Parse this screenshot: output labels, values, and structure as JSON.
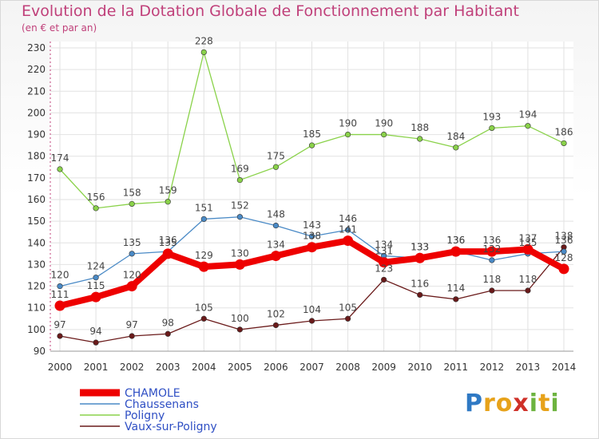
{
  "header": {
    "title": "Evolution de la Dotation Globale de Fonctionnement par Habitant",
    "subtitle": "(en € et par an)"
  },
  "logo": {
    "text": "Proxiti"
  },
  "colors": {
    "title": "#c0407a",
    "CHAMOLE": "#ee0000",
    "Chaussenans": "#4a8ac6",
    "Poligny": "#8ad24a",
    "Vaux-sur-Poligny": "#6a1a1a"
  },
  "chart_data": {
    "type": "line",
    "title": "Evolution de la Dotation Globale de Fonctionnement par Habitant",
    "subtitle": "(en € et par an)",
    "x": [
      "2000",
      "2001",
      "2002",
      "2003",
      "2004",
      "2005",
      "2006",
      "2007",
      "2008",
      "2009",
      "2010",
      "2011",
      "2012",
      "2013",
      "2014"
    ],
    "ylim": [
      90,
      230
    ],
    "yticks": [
      90,
      100,
      110,
      120,
      130,
      140,
      150,
      160,
      170,
      180,
      190,
      200,
      210,
      220,
      230
    ],
    "grid": true,
    "legend": "bottom-left",
    "series": [
      {
        "name": "CHAMOLE",
        "values": [
          111,
          115,
          120,
          135,
          129,
          130,
          134,
          138,
          141,
          131,
          133,
          136,
          136,
          137,
          128
        ]
      },
      {
        "name": "Chaussenans",
        "values": [
          120,
          124,
          135,
          136,
          151,
          152,
          148,
          143,
          146,
          134,
          133,
          136,
          132,
          135,
          136
        ]
      },
      {
        "name": "Poligny",
        "values": [
          174,
          156,
          158,
          159,
          228,
          169,
          175,
          185,
          190,
          190,
          188,
          184,
          193,
          194,
          186
        ]
      },
      {
        "name": "Vaux-sur-Poligny",
        "values": [
          97,
          94,
          97,
          98,
          105,
          100,
          102,
          104,
          105,
          123,
          116,
          114,
          118,
          118,
          138
        ]
      }
    ]
  }
}
